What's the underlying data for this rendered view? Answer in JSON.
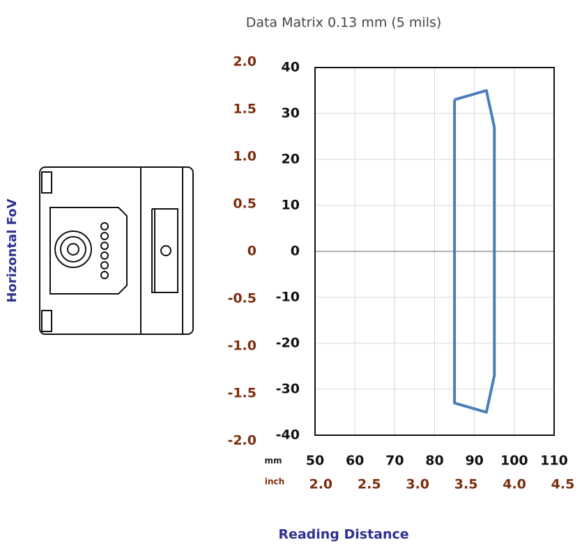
{
  "chart_data": {
    "type": "line",
    "title": "Data Matrix 0.13 mm (5 mils)",
    "y_label": "Horizontal FoV",
    "x_label": "Reading Distance",
    "x_unit": "mm",
    "x2_unit": "inch",
    "series": [
      {
        "color": "#4a7ebb",
        "x": [
          85,
          93,
          95,
          95,
          93,
          85,
          85
        ],
        "values": [
          33,
          35,
          27,
          -27,
          -35,
          -33,
          33
        ]
      }
    ],
    "xlim": [
      50,
      110
    ],
    "xticks": [
      50,
      60,
      70,
      80,
      90,
      100,
      110
    ],
    "ylim": [
      -40,
      40
    ],
    "yticks": [
      -40,
      -30,
      -20,
      -10,
      0,
      10,
      20,
      30,
      40
    ],
    "x2lim": [
      1.94,
      4.41
    ],
    "x2ticks": [
      {
        "value": 2,
        "label": "2.0"
      },
      2.5,
      {
        "value": 3,
        "label": "3.0"
      },
      3.5,
      {
        "value": 4,
        "label": "4.0"
      },
      4.5
    ],
    "y2lim": [
      -1.94,
      1.94
    ],
    "y2ticks": [
      {
        "value": -2,
        "label": "-2.0"
      },
      -1.5,
      {
        "value": -1,
        "label": "-1.0"
      },
      -0.5,
      0,
      0.5,
      {
        "value": 1,
        "label": "1.0"
      },
      1.5,
      {
        "value": 2,
        "label": "2.0"
      }
    ],
    "grid": true
  }
}
